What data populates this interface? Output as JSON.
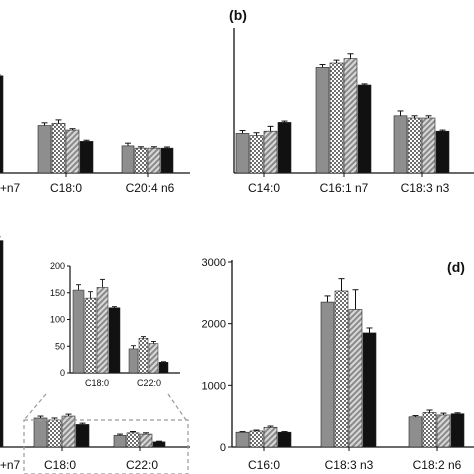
{
  "colors": {
    "gray": "#8e8e8e",
    "checker": "#d6d6d6",
    "hatch": "#b9b9b9",
    "black": "#111111",
    "axis": "#111111",
    "inset_border": "#9a9a9a"
  },
  "series_styles": [
    "solid-gray",
    "checkered",
    "diagonal-hatch",
    "solid-black"
  ],
  "chart_data": [
    {
      "panel": "a",
      "type": "bar",
      "label_visible": false,
      "categories": [
        "+n7",
        "C18:0",
        "C20:4 n6"
      ],
      "series": [
        {
          "values": [
            null,
            21,
            12
          ]
        },
        {
          "values": [
            null,
            22,
            11
          ]
        },
        {
          "values": [
            null,
            19,
            11
          ]
        },
        {
          "values": [
            43,
            14,
            11
          ]
        }
      ],
      "errors": [
        [
          null,
          1.2,
          1.2
        ],
        [
          null,
          1.5,
          0.6
        ],
        [
          null,
          0.6,
          0.6
        ],
        [
          0.5,
          0.5,
          0.5
        ]
      ],
      "ylim": [
        0,
        50
      ]
    },
    {
      "panel": "b",
      "type": "bar",
      "label": "(b)",
      "categories": [
        "C14:0",
        "C16:1 n7",
        "C18:3 n3"
      ],
      "series": [
        {
          "values": [
            18,
            48,
            26
          ]
        },
        {
          "values": [
            17,
            50,
            25
          ]
        },
        {
          "values": [
            19,
            52,
            25
          ]
        },
        {
          "values": [
            23,
            40,
            19
          ]
        }
      ],
      "errors": [
        [
          1.3,
          1.3,
          2.2
        ],
        [
          1.3,
          1.3,
          1.0
        ],
        [
          2.2,
          2.2,
          1.0
        ],
        [
          0.6,
          0.5,
          0.5
        ]
      ],
      "ylim": [
        0,
        65
      ]
    },
    {
      "panel": "c",
      "type": "bar",
      "label_visible": false,
      "categories": [
        "+n7",
        "C18:0",
        "C22:0"
      ],
      "series": [
        {
          "values": [
            null,
            4.5,
            1.8
          ]
        },
        {
          "values": [
            null,
            4.2,
            2.2
          ]
        },
        {
          "values": [
            null,
            4.8,
            2.0
          ]
        },
        {
          "values": [
            32,
            3.5,
            0.8
          ]
        }
      ],
      "errors": [
        [
          null,
          0.3,
          0.2
        ],
        [
          null,
          0.3,
          0.2
        ],
        [
          null,
          0.3,
          0.2
        ],
        [
          0.6,
          0.2,
          0.1
        ]
      ],
      "ylim": [
        0,
        60
      ],
      "inset": {
        "type": "bar",
        "categories": [
          "C18:0",
          "C22:0"
        ],
        "series": [
          {
            "values": [
              155,
              45
            ]
          },
          {
            "values": [
              140,
              65
            ]
          },
          {
            "values": [
              160,
              55
            ]
          },
          {
            "values": [
              122,
              20
            ]
          }
        ],
        "errors": [
          [
            10,
            6
          ],
          [
            12,
            3
          ],
          [
            15,
            4
          ],
          [
            2,
            1
          ]
        ],
        "ylim": [
          0,
          200
        ],
        "yticks": [
          0,
          50,
          100,
          150,
          200
        ],
        "ytick_labels": [
          "0",
          "50",
          "100",
          "150",
          "200"
        ]
      }
    },
    {
      "panel": "d",
      "type": "bar",
      "label": "(d)",
      "categories": [
        "C16:0",
        "C18:3 n3",
        "C18:2 n6"
      ],
      "series": [
        {
          "values": [
            240,
            2350,
            490
          ]
        },
        {
          "values": [
            260,
            2530,
            560
          ]
        },
        {
          "values": [
            320,
            2230,
            520
          ]
        },
        {
          "values": [
            240,
            1850,
            540
          ]
        }
      ],
      "errors": [
        [
          10,
          100,
          20
        ],
        [
          15,
          200,
          40
        ],
        [
          20,
          320,
          30
        ],
        [
          10,
          80,
          15
        ]
      ],
      "ylim": [
        0,
        3000
      ],
      "yticks": [
        0,
        1000,
        2000,
        3000
      ],
      "ytick_labels": [
        "0",
        "1000",
        "2000",
        "3000"
      ]
    }
  ]
}
